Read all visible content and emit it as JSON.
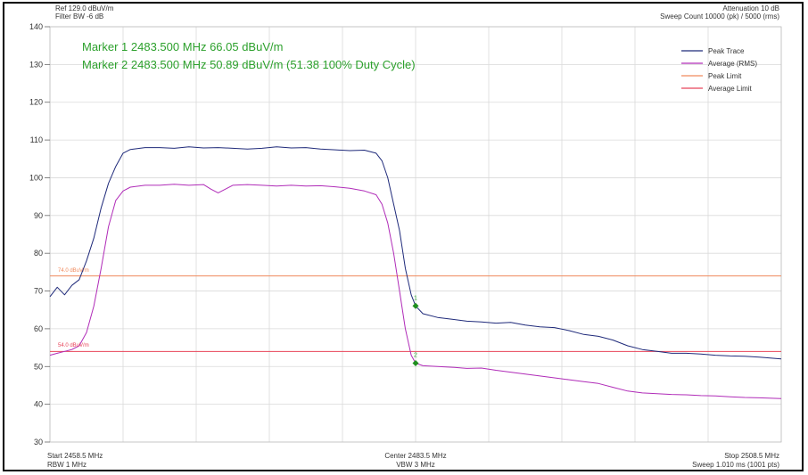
{
  "header": {
    "ref_level": "Ref 129.0 dBuV/m",
    "filter_bw": "Filter BW -6 dB",
    "attenuation": "Attenuation 10 dB",
    "sweep_count": "Sweep Count 10000 (pk) / 5000 (rms)",
    "marker1": "Marker 1 2483.500 MHz 66.05 dBuV/m",
    "marker2": "Marker 2 2483.500 MHz 50.89 dBuV/m (51.38 100% Duty Cycle)"
  },
  "footer": {
    "start": "Start 2458.5 MHz",
    "rbw": "RBW 1 MHz",
    "center": "Center 2483.5 MHz",
    "vbw": "VBW 3 MHz",
    "stop": "Stop 2508.5 MHz",
    "sweep": "Sweep 1.010 ms (1001 pts)"
  },
  "limit_labels": {
    "peak": "74.0 dBuV/m",
    "average": "54.0 dBuV/m"
  },
  "marker_labels": {
    "m1": "1",
    "m2": "2"
  },
  "colors": {
    "peak_trace": "#1f2a7a",
    "average_trace": "#b02cb8",
    "peak_limit": "#f08a5d",
    "average_limit": "#e8445a",
    "marker": "#1f8f1f",
    "marker_text": "#2ca02c",
    "grid": "#d9d9d9"
  },
  "chart_data": {
    "type": "line",
    "x_unit": "MHz",
    "y_unit": "dBuV/m",
    "xlim": [
      2458.5,
      2508.5
    ],
    "ylim": [
      30,
      140
    ],
    "yticks": [
      30,
      40,
      50,
      60,
      70,
      80,
      90,
      100,
      110,
      120,
      130,
      140
    ],
    "grid": true,
    "legend_position": "top-right",
    "series": [
      {
        "name": "Peak Trace",
        "color": "#1f2a7a",
        "x": [
          2458.5,
          2459.0,
          2459.5,
          2460.0,
          2460.5,
          2461.0,
          2461.5,
          2462.0,
          2462.5,
          2463.0,
          2463.5,
          2464.0,
          2465.0,
          2466.0,
          2467.0,
          2468.0,
          2469.0,
          2470.0,
          2471.0,
          2472.0,
          2473.0,
          2474.0,
          2475.0,
          2476.0,
          2477.0,
          2478.0,
          2479.0,
          2480.0,
          2480.8,
          2481.2,
          2481.6,
          2482.0,
          2482.4,
          2482.8,
          2483.2,
          2483.5,
          2484.0,
          2485.0,
          2486.0,
          2487.0,
          2488.0,
          2489.0,
          2490.0,
          2491.0,
          2492.0,
          2493.0,
          2494.0,
          2495.0,
          2496.0,
          2497.0,
          2498.0,
          2499.0,
          2500.0,
          2501.0,
          2502.0,
          2503.0,
          2504.0,
          2505.0,
          2506.0,
          2507.0,
          2508.5
        ],
        "y": [
          68.5,
          71.0,
          69.0,
          71.5,
          73.0,
          78.0,
          84.0,
          92.0,
          98.5,
          103.0,
          106.5,
          107.5,
          108.0,
          108.0,
          107.8,
          108.2,
          107.9,
          108.0,
          107.8,
          107.6,
          107.8,
          108.2,
          107.9,
          108.0,
          107.6,
          107.4,
          107.2,
          107.3,
          106.5,
          104.5,
          100.0,
          93.0,
          86.0,
          76.0,
          69.0,
          66.05,
          64.0,
          63.0,
          62.5,
          62.0,
          61.8,
          61.5,
          61.7,
          61.0,
          60.5,
          60.3,
          59.5,
          58.5,
          58.0,
          57.0,
          55.5,
          54.5,
          54.0,
          53.5,
          53.5,
          53.3,
          53.0,
          52.8,
          52.7,
          52.5,
          52.0
        ]
      },
      {
        "name": "Average (RMS)",
        "color": "#b02cb8",
        "x": [
          2458.5,
          2459.0,
          2459.5,
          2460.0,
          2460.5,
          2461.0,
          2461.5,
          2462.0,
          2462.5,
          2463.0,
          2463.5,
          2464.0,
          2465.0,
          2466.0,
          2467.0,
          2468.0,
          2469.0,
          2469.5,
          2470.0,
          2470.5,
          2471.0,
          2472.0,
          2473.0,
          2474.0,
          2475.0,
          2476.0,
          2477.0,
          2478.0,
          2479.0,
          2480.0,
          2480.8,
          2481.2,
          2481.6,
          2482.0,
          2482.4,
          2482.8,
          2483.2,
          2483.5,
          2484.0,
          2485.0,
          2486.0,
          2487.0,
          2488.0,
          2489.0,
          2490.0,
          2491.0,
          2492.0,
          2493.0,
          2494.0,
          2495.0,
          2496.0,
          2497.0,
          2498.0,
          2499.0,
          2500.0,
          2501.0,
          2502.0,
          2503.0,
          2504.0,
          2505.0,
          2506.0,
          2507.0,
          2508.5
        ],
        "y": [
          53.0,
          53.5,
          54.0,
          54.5,
          55.5,
          59.0,
          66.0,
          76.0,
          87.0,
          94.0,
          96.5,
          97.5,
          98.0,
          98.0,
          98.3,
          98.0,
          98.2,
          97.0,
          96.0,
          97.0,
          98.0,
          98.2,
          98.0,
          97.8,
          98.0,
          97.8,
          97.9,
          97.6,
          97.2,
          96.5,
          95.5,
          93.0,
          88.0,
          80.0,
          70.0,
          60.0,
          53.0,
          50.89,
          50.2,
          50.0,
          49.8,
          49.5,
          49.6,
          49.0,
          48.5,
          48.0,
          47.5,
          47.0,
          46.5,
          46.0,
          45.5,
          44.5,
          43.5,
          43.0,
          42.8,
          42.6,
          42.5,
          42.3,
          42.2,
          42.0,
          41.8,
          41.7,
          41.5
        ]
      },
      {
        "name": "Peak Limit",
        "color": "#f08a5d",
        "x": [
          2458.5,
          2508.5
        ],
        "y": [
          74.0,
          74.0
        ]
      },
      {
        "name": "Average Limit",
        "color": "#e8445a",
        "x": [
          2458.5,
          2508.5
        ],
        "y": [
          54.0,
          54.0
        ]
      }
    ],
    "markers": [
      {
        "label": "1",
        "x": 2483.5,
        "y": 66.05
      },
      {
        "label": "2",
        "x": 2483.5,
        "y": 50.89
      }
    ]
  }
}
